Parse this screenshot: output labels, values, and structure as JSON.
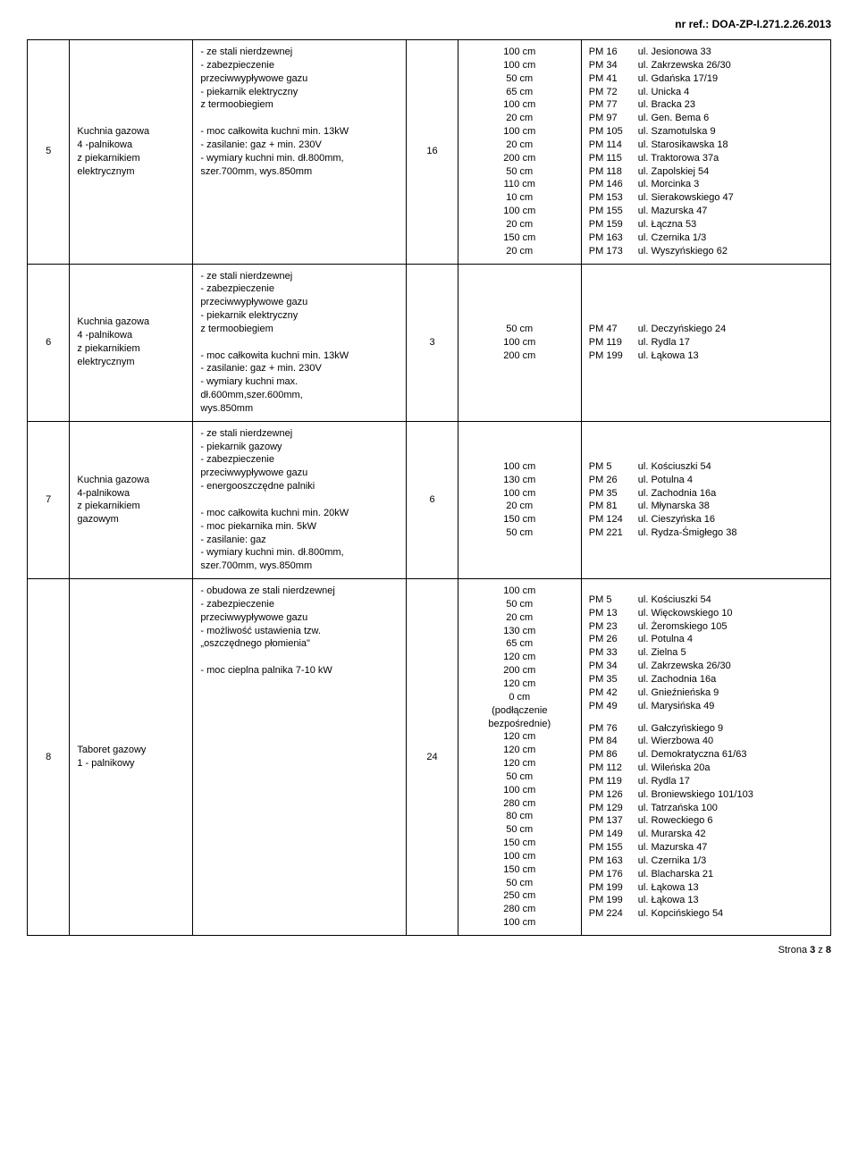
{
  "header": {
    "ref": "nr ref.: DOA-ZP-I.271.2.26.2013"
  },
  "footer": {
    "text": "Strona 3 z 8"
  },
  "rows": [
    {
      "num": "5",
      "name": "Kuchnia gazowa\n4 -palnikowa\nz piekarnikiem\nelektrycznym",
      "desc": "- ze stali nierdzewnej\n- zabezpieczenie\nprzeciwwypływowe gazu\n- piekarnik elektryczny\nz termoobiegiem\n\n- moc całkowita kuchni min. 13kW\n- zasilanie: gaz + min. 230V\n- wymiary kuchni min. dł.800mm,\nszer.700mm, wys.850mm",
      "qty": "16",
      "meas": "100 cm\n100 cm\n50 cm\n65 cm\n100 cm\n20 cm\n100 cm\n20 cm\n200 cm\n50 cm\n110 cm\n10 cm\n100 cm\n20 cm\n150 cm\n20 cm",
      "locs": [
        [
          {
            "pm": "PM 16",
            "ul": "ul. Jesionowa 33"
          },
          {
            "pm": "PM 34",
            "ul": "ul. Zakrzewska 26/30"
          },
          {
            "pm": "PM 41",
            "ul": "ul. Gdańska 17/19"
          },
          {
            "pm": "PM 72",
            "ul": "ul. Unicka 4"
          },
          {
            "pm": "PM 77",
            "ul": "ul. Bracka 23"
          },
          {
            "pm": "PM 97",
            "ul": "ul. Gen. Bema 6"
          },
          {
            "pm": "PM 105",
            "ul": "ul. Szamotulska 9"
          },
          {
            "pm": "PM 114",
            "ul": "ul. Starosikawska 18"
          },
          {
            "pm": "PM 115",
            "ul": "ul. Traktorowa 37a"
          },
          {
            "pm": "PM 118",
            "ul": "ul. Zapolskiej 54"
          },
          {
            "pm": "PM 146",
            "ul": "ul. Morcinka 3"
          },
          {
            "pm": "PM 153",
            "ul": "ul. Sierakowskiego 47"
          },
          {
            "pm": "PM 155",
            "ul": "ul. Mazurska 47"
          },
          {
            "pm": "PM 159",
            "ul": "ul. Łączna 53"
          },
          {
            "pm": "PM 163",
            "ul": "ul. Czernika 1/3"
          },
          {
            "pm": "PM 173",
            "ul": "ul. Wyszyńskiego 62"
          }
        ]
      ]
    },
    {
      "num": "6",
      "name": "Kuchnia gazowa\n4 -palnikowa\nz piekarnikiem\nelektrycznym",
      "desc": "- ze stali nierdzewnej\n- zabezpieczenie\nprzeciwwypływowe gazu\n- piekarnik elektryczny\nz termoobiegiem\n\n- moc całkowita kuchni min. 13kW\n- zasilanie: gaz + min. 230V\n- wymiary kuchni max.\ndł.600mm,szer.600mm,\nwys.850mm",
      "qty": "3",
      "meas": "50 cm\n100 cm\n200 cm",
      "locs": [
        [
          {
            "pm": "PM 47",
            "ul": "ul. Deczyńskiego 24"
          },
          {
            "pm": "PM 119",
            "ul": "ul. Rydla 17"
          },
          {
            "pm": "PM 199",
            "ul": "ul. Łąkowa 13"
          }
        ]
      ]
    },
    {
      "num": "7",
      "name": "Kuchnia gazowa\n4-palnikowa\nz piekarnikiem\ngazowym",
      "desc": "- ze stali nierdzewnej\n- piekarnik gazowy\n- zabezpieczenie\nprzeciwwypływowe gazu\n- energooszczędne palniki\n\n- moc całkowita kuchni min. 20kW\n- moc piekarnika min. 5kW\n- zasilanie: gaz\n- wymiary kuchni min. dł.800mm,\nszer.700mm, wys.850mm",
      "qty": "6",
      "meas": "100 cm\n130 cm\n100 cm\n20 cm\n150 cm\n50 cm",
      "locs": [
        [
          {
            "pm": "PM 5",
            "ul": "ul. Kościuszki 54"
          },
          {
            "pm": "PM 26",
            "ul": "ul. Potulna 4"
          },
          {
            "pm": "PM 35",
            "ul": "ul. Zachodnia 16a"
          },
          {
            "pm": "PM 81",
            "ul": "ul. Młynarska 38"
          },
          {
            "pm": "PM 124",
            "ul": "ul. Cieszyńska 16"
          },
          {
            "pm": "PM 221",
            "ul": "ul. Rydza-Śmigłego 38"
          }
        ]
      ]
    },
    {
      "num": "8",
      "name": "Taboret gazowy\n1 - palnikowy",
      "desc": "- obudowa ze stali nierdzewnej\n- zabezpieczenie\nprzeciwwypływowe gazu\n- możliwość ustawienia tzw.\n„oszczędnego płomienia\"\n\n- moc cieplna palnika 7-10 kW",
      "qty": "24",
      "meas": "100 cm\n50 cm\n20 cm\n130 cm\n65 cm\n120 cm\n200 cm\n120 cm\n0 cm\n(podłączenie\nbezpośrednie)\n120 cm\n120 cm\n120 cm\n50 cm\n100 cm\n280 cm\n80 cm\n50 cm\n150 cm\n100 cm\n150 cm\n50 cm\n250 cm\n280 cm\n100 cm",
      "locs": [
        [
          {
            "pm": "PM 5",
            "ul": "ul. Kościuszki 54"
          },
          {
            "pm": "PM 13",
            "ul": "ul. Więckowskiego 10"
          },
          {
            "pm": "PM 23",
            "ul": "ul. Żeromskiego 105"
          },
          {
            "pm": "PM 26",
            "ul": "ul. Potulna 4"
          },
          {
            "pm": "PM 33",
            "ul": "ul. Zielna 5"
          },
          {
            "pm": "PM 34",
            "ul": "ul. Zakrzewska 26/30"
          },
          {
            "pm": "PM 35",
            "ul": "ul. Zachodnia 16a"
          },
          {
            "pm": "PM 42",
            "ul": "ul. Gnieźnieńska 9"
          },
          {
            "pm": "PM 49",
            "ul": "ul. Marysińska 49"
          }
        ],
        [
          {
            "pm": "PM 76",
            "ul": "ul. Gałczyńskiego 9"
          },
          {
            "pm": "PM 84",
            "ul": "ul. Wierzbowa 40"
          },
          {
            "pm": "PM 86",
            "ul": "ul. Demokratyczna 61/63"
          },
          {
            "pm": "PM 112",
            "ul": "ul. Wileńska 20a"
          },
          {
            "pm": "PM 119",
            "ul": "ul. Rydla 17"
          },
          {
            "pm": "PM 126",
            "ul": "ul. Broniewskiego 101/103"
          },
          {
            "pm": "PM 129",
            "ul": "ul. Tatrzańska 100"
          },
          {
            "pm": "PM 137",
            "ul": "ul. Roweckiego 6"
          },
          {
            "pm": "PM 149",
            "ul": "ul. Murarska 42"
          },
          {
            "pm": "PM 155",
            "ul": "ul. Mazurska 47"
          },
          {
            "pm": "PM 163",
            "ul": "ul. Czernika 1/3"
          },
          {
            "pm": "PM 176",
            "ul": "ul. Blacharska 21"
          },
          {
            "pm": "PM 199",
            "ul": "ul. Łąkowa 13"
          },
          {
            "pm": "PM 199",
            "ul": "ul. Łąkowa 13"
          },
          {
            "pm": "PM 224",
            "ul": "ul. Kopcińskiego 54"
          }
        ]
      ]
    }
  ]
}
